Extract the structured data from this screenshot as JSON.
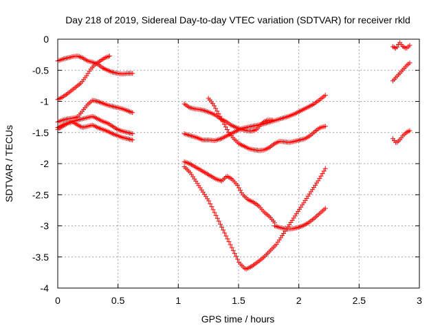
{
  "chart_data": {
    "type": "scatter",
    "title": "Day 218 of 2019, Sidereal Day-to-day VTEC variation (SDTVAR) for receiver rkld",
    "xlabel": "GPS time / hours",
    "ylabel": "SDTVAR / TECUs",
    "xlim": [
      0,
      3
    ],
    "ylim": [
      -4,
      0
    ],
    "xticks": [
      0,
      0.5,
      1,
      1.5,
      2,
      2.5,
      3
    ],
    "xtick_labels": [
      "0",
      "0.5",
      "1",
      "1.5",
      "2",
      "2.5",
      "3"
    ],
    "yticks": [
      0,
      -0.5,
      -1,
      -1.5,
      -2,
      -2.5,
      -3,
      -3.5,
      -4
    ],
    "ytick_labels": [
      "0",
      "-0.5",
      "-1",
      "-1.5",
      "-2",
      "-2.5",
      "-3",
      "-3.5",
      "-4"
    ],
    "grid": true,
    "marker": "+",
    "color": "#ff0000",
    "series": [
      {
        "x_range": [
          0.0,
          0.62
        ],
        "y": [
          -0.35,
          -0.32,
          -0.3,
          -0.28,
          -0.27,
          -0.3,
          -0.35,
          -0.37,
          -0.4,
          -0.46,
          -0.5,
          -0.53,
          -0.55,
          -0.56,
          -0.55,
          -0.55
        ]
      },
      {
        "x_range": [
          0.0,
          0.43
        ],
        "y": [
          -0.97,
          -0.93,
          -0.88,
          -0.82,
          -0.76,
          -0.7,
          -0.6,
          -0.48,
          -0.4,
          -0.35,
          -0.3,
          -0.27
        ]
      },
      {
        "x_range": [
          0.0,
          0.62
        ],
        "y": [
          -1.33,
          -1.3,
          -1.28,
          -1.27,
          -1.25,
          -1.15,
          -1.05,
          -0.98,
          -1.0,
          -1.03,
          -1.06,
          -1.08,
          -1.1,
          -1.12,
          -1.15,
          -1.18
        ]
      },
      {
        "x_range": [
          0.0,
          0.62
        ],
        "y": [
          -1.45,
          -1.4,
          -1.35,
          -1.32,
          -1.3,
          -1.28,
          -1.26,
          -1.24,
          -1.28,
          -1.32,
          -1.35,
          -1.4,
          -1.45,
          -1.48,
          -1.5,
          -1.52
        ]
      },
      {
        "x_range": [
          0.0,
          0.62
        ],
        "y": [
          -1.42,
          -1.38,
          -1.35,
          -1.33,
          -1.38,
          -1.42,
          -1.4,
          -1.38,
          -1.42,
          -1.45,
          -1.48,
          -1.52,
          -1.55,
          -1.58,
          -1.6,
          -1.62
        ]
      },
      {
        "x_range": [
          1.05,
          1.78
        ],
        "y": [
          -1.04,
          -1.1,
          -1.12,
          -1.13,
          -1.15,
          -1.18,
          -1.22,
          -1.28,
          -1.32,
          -1.38,
          -1.42,
          -1.45,
          -1.47,
          -1.48,
          -1.45,
          -1.35,
          -1.3,
          -1.3
        ]
      },
      {
        "x_range": [
          1.05,
          2.22
        ],
        "y": [
          -1.52,
          -1.55,
          -1.58,
          -1.62,
          -1.62,
          -1.63,
          -1.6,
          -1.55,
          -1.5,
          -1.45,
          -1.42,
          -1.4,
          -1.38,
          -1.36,
          -1.33,
          -1.3,
          -1.27,
          -1.24,
          -1.2,
          -1.15,
          -1.1,
          -1.05,
          -0.98,
          -0.9
        ]
      },
      {
        "x_range": [
          1.25,
          2.22
        ],
        "y": [
          -0.95,
          -1.05,
          -1.2,
          -1.35,
          -1.5,
          -1.6,
          -1.68,
          -1.72,
          -1.76,
          -1.78,
          -1.79,
          -1.78,
          -1.74,
          -1.68,
          -1.64,
          -1.65,
          -1.66,
          -1.64,
          -1.62,
          -1.6,
          -1.55,
          -1.48,
          -1.42,
          -1.4
        ]
      },
      {
        "x_range": [
          1.05,
          1.8
        ],
        "y": [
          -1.97,
          -2.0,
          -2.05,
          -2.1,
          -2.15,
          -2.2,
          -2.25,
          -2.28,
          -2.2,
          -2.25,
          -2.35,
          -2.5,
          -2.58,
          -2.62,
          -2.68,
          -2.78,
          -2.85,
          -2.95
        ]
      },
      {
        "x_range": [
          1.05,
          2.22
        ],
        "y": [
          -2.05,
          -2.15,
          -2.3,
          -2.45,
          -2.6,
          -2.8,
          -3.0,
          -3.2,
          -3.4,
          -3.6,
          -3.7,
          -3.65,
          -3.58,
          -3.5,
          -3.4,
          -3.3,
          -3.15,
          -3.0,
          -2.85,
          -2.7,
          -2.55,
          -2.4,
          -2.25,
          -2.08
        ]
      },
      {
        "x_range": [
          1.8,
          2.22
        ],
        "y": [
          -3.0,
          -3.03,
          -3.05,
          -3.05,
          -3.03,
          -3.0,
          -2.95,
          -2.88,
          -2.8,
          -2.72
        ]
      },
      {
        "x_range": [
          2.78,
          2.92
        ],
        "y": [
          -0.12,
          -0.15,
          -0.05,
          -0.12,
          -0.15,
          -0.1
        ]
      },
      {
        "x_range": [
          2.78,
          2.92
        ],
        "y": [
          -0.67,
          -0.62,
          -0.57,
          -0.52,
          -0.47,
          -0.42,
          -0.38
        ]
      },
      {
        "x_range": [
          2.78,
          2.92
        ],
        "y": [
          -1.6,
          -1.67,
          -1.62,
          -1.55,
          -1.5,
          -1.47
        ]
      }
    ]
  }
}
